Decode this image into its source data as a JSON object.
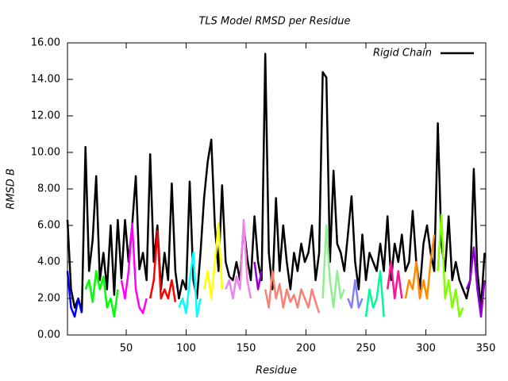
{
  "chart_data": {
    "type": "line",
    "title": "TLS Model RMSD per Residue",
    "x_label": "Residue",
    "y_label": "RMSD B",
    "xlim": [
      1,
      350
    ],
    "ylim": [
      0,
      16
    ],
    "xticks": [
      50,
      100,
      150,
      200,
      250,
      300,
      350
    ],
    "yticks": [
      {
        "value": 0,
        "label": "0.00"
      },
      {
        "value": 2,
        "label": "2.00"
      },
      {
        "value": 4,
        "label": "4.00"
      },
      {
        "value": 6,
        "label": "6.00"
      },
      {
        "value": 8,
        "label": "8.00"
      },
      {
        "value": 10,
        "label": "10.00"
      },
      {
        "value": 12,
        "label": "12.00"
      },
      {
        "value": 14,
        "label": "14.00"
      },
      {
        "value": 16,
        "label": "16.00"
      }
    ],
    "grid": false,
    "legend": "top right",
    "series": [
      {
        "name": "Rigid Chain",
        "color": "#000000",
        "x": [
          1,
          4,
          7,
          10,
          13,
          16,
          19,
          22,
          25,
          28,
          31,
          34,
          37,
          40,
          43,
          46,
          49,
          52,
          55,
          58,
          61,
          64,
          67,
          70,
          73,
          76,
          79,
          82,
          85,
          88,
          91,
          94,
          97,
          100,
          103,
          106,
          109,
          112,
          115,
          118,
          121,
          124,
          127,
          130,
          133,
          136,
          139,
          142,
          145,
          148,
          151,
          154,
          157,
          160,
          163,
          166,
          169,
          172,
          175,
          178,
          181,
          184,
          187,
          190,
          193,
          196,
          199,
          202,
          205,
          208,
          211,
          214,
          217,
          220,
          223,
          226,
          229,
          232,
          235,
          238,
          241,
          244,
          247,
          250,
          253,
          256,
          259,
          262,
          265,
          268,
          271,
          274,
          277,
          280,
          283,
          286,
          289,
          292,
          295,
          298,
          301,
          304,
          307,
          310,
          313,
          316,
          319,
          322,
          325,
          328,
          331,
          334,
          337,
          340,
          343,
          346,
          349
        ],
        "values": [
          6.3,
          2.5,
          1.5,
          2.0,
          1.3,
          10.3,
          3.5,
          5.2,
          8.7,
          3.0,
          4.5,
          2.5,
          6.0,
          2.2,
          6.3,
          3.1,
          6.3,
          4.0,
          6.0,
          8.7,
          3.6,
          4.5,
          3.0,
          9.9,
          4.0,
          6.0,
          2.5,
          4.5,
          3.0,
          8.3,
          3.5,
          2.0,
          3.0,
          2.5,
          8.4,
          3.0,
          2.0,
          4.5,
          7.5,
          9.5,
          10.7,
          6.0,
          3.5,
          8.2,
          4.0,
          3.2,
          3.0,
          4.0,
          3.0,
          6.0,
          4.2,
          3.0,
          6.5,
          4.0,
          3.0,
          15.4,
          4.5,
          2.5,
          7.5,
          3.5,
          6.0,
          4.0,
          2.5,
          4.5,
          3.5,
          5.0,
          4.0,
          4.5,
          6.0,
          3.0,
          4.5,
          14.4,
          14.1,
          4.0,
          9.0,
          5.0,
          4.5,
          3.5,
          5.5,
          7.6,
          4.0,
          2.5,
          5.5,
          3.0,
          4.5,
          4.0,
          3.5,
          5.0,
          3.5,
          6.5,
          3.0,
          5.0,
          4.0,
          5.5,
          3.5,
          4.0,
          6.8,
          4.0,
          2.5,
          5.0,
          6.0,
          4.5,
          3.5,
          11.6,
          5.0,
          3.5,
          6.5,
          3.0,
          4.0,
          3.0,
          2.5,
          2.0,
          3.0,
          9.1,
          3.5,
          1.5,
          4.5
        ]
      },
      {
        "color": "#0000ff",
        "x": [
          1,
          4,
          7,
          10,
          13
        ],
        "values": [
          3.5,
          1.5,
          1.0,
          2.0,
          1.2
        ]
      },
      {
        "color": "#00ff00",
        "x": [
          16,
          19,
          22,
          25,
          28,
          31,
          34,
          37,
          40,
          43
        ],
        "values": [
          2.5,
          3.0,
          1.8,
          3.5,
          2.5,
          3.2,
          1.5,
          2.0,
          1.0,
          2.5
        ]
      },
      {
        "color": "#ff00ff",
        "x": [
          46,
          49,
          52,
          55,
          58,
          61,
          64,
          67
        ],
        "values": [
          3.0,
          2.0,
          3.5,
          6.1,
          2.5,
          1.5,
          1.2,
          2.0
        ]
      },
      {
        "color": "#ff0000",
        "x": [
          70,
          73,
          76,
          79,
          82,
          85,
          88,
          91
        ],
        "values": [
          2.0,
          3.0,
          5.7,
          2.0,
          2.5,
          2.0,
          3.0,
          1.8
        ]
      },
      {
        "color": "#00ffff",
        "x": [
          94,
          97,
          100,
          103,
          106,
          109,
          112
        ],
        "values": [
          1.5,
          2.0,
          1.2,
          3.0,
          4.5,
          1.0,
          2.0
        ]
      },
      {
        "color": "#ffff00",
        "x": [
          115,
          118,
          121,
          124,
          127,
          130
        ],
        "values": [
          2.5,
          3.5,
          2.0,
          4.0,
          6.1,
          2.5
        ]
      },
      {
        "color": "#ee82ee",
        "x": [
          133,
          136,
          139,
          142,
          145,
          148,
          151,
          154
        ],
        "values": [
          2.5,
          3.0,
          2.0,
          3.2,
          2.5,
          6.3,
          3.0,
          2.0
        ]
      },
      {
        "color": "#9400d3",
        "x": [
          157,
          160,
          163
        ],
        "values": [
          4.0,
          2.5,
          3.5
        ]
      },
      {
        "color": "#fa8072",
        "x": [
          166,
          169,
          172,
          175,
          178,
          181,
          184,
          187,
          190,
          193,
          196,
          199,
          202,
          205,
          208,
          211
        ],
        "values": [
          2.5,
          1.5,
          3.5,
          2.0,
          2.8,
          1.5,
          2.5,
          1.8,
          2.2,
          1.5,
          2.5,
          2.0,
          1.5,
          2.5,
          1.8,
          1.2
        ]
      },
      {
        "color": "#90ee90",
        "x": [
          214,
          217,
          220,
          223,
          226,
          229,
          232
        ],
        "values": [
          2.0,
          6.0,
          3.0,
          1.5,
          3.5,
          2.0,
          2.5
        ]
      },
      {
        "color": "#8080ff",
        "x": [
          235,
          238,
          241,
          244,
          247
        ],
        "values": [
          2.0,
          1.5,
          3.0,
          1.5,
          2.0
        ]
      },
      {
        "color": "#00fa9a",
        "x": [
          250,
          253,
          256,
          259,
          262,
          265
        ],
        "values": [
          1.0,
          2.5,
          1.5,
          2.0,
          3.5,
          1.0
        ]
      },
      {
        "color": "#ff1493",
        "x": [
          268,
          271,
          274,
          277,
          280
        ],
        "values": [
          2.5,
          4.0,
          2.0,
          3.5,
          2.0
        ]
      },
      {
        "color": "#ff8c00",
        "x": [
          283,
          286,
          289,
          292,
          295,
          298,
          301,
          304,
          307
        ],
        "values": [
          2.0,
          3.0,
          2.5,
          4.0,
          2.0,
          3.0,
          2.0,
          4.0,
          5.5
        ]
      },
      {
        "color": "#7fff00",
        "x": [
          310,
          313,
          316,
          319,
          322,
          325,
          328,
          331
        ],
        "values": [
          3.5,
          6.6,
          2.0,
          3.0,
          1.5,
          2.5,
          1.0,
          1.5
        ]
      },
      {
        "color": "#9400d3",
        "x": [
          334,
          337,
          340,
          343,
          346,
          349
        ],
        "values": [
          2.5,
          3.0,
          4.8,
          2.5,
          1.0,
          3.0
        ]
      }
    ]
  }
}
